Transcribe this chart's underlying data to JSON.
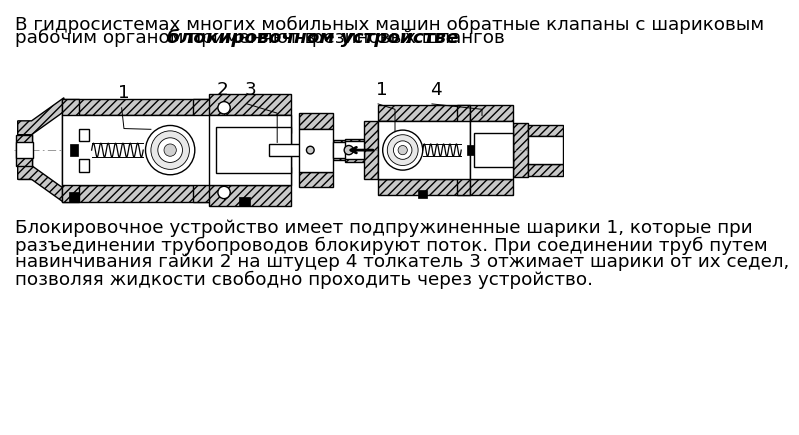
{
  "bg_color": "#ffffff",
  "title_line1": "В гидросистемах многих мобильных машин обратные клапаны с шариковым",
  "title_line2_normal1": "рабочим органом применяют в ",
  "title_line2_italic": "блокировочном устройстве",
  "title_line2_normal2": " резиновых шлангов",
  "body_text_line1": "Блокировочное устройство имеет подпружиненные шарики 1, которые при",
  "body_text_line2": "разъединении трубопроводов блокируют поток. При соединении труб путем",
  "body_text_line3": "навинчивания гайки 2 на штуцер 4 толкатель 3 отжимает шарики от их седел,",
  "body_text_line4": "позволяя жидкости свободно проходить через устройство.",
  "text_fontsize": 13.2,
  "label_fontsize": 13.2,
  "body_fontsize": 13.2,
  "metal_color": "#c8c8c8",
  "edge_color": "#000000",
  "hatch": "////",
  "lw": 1.0
}
